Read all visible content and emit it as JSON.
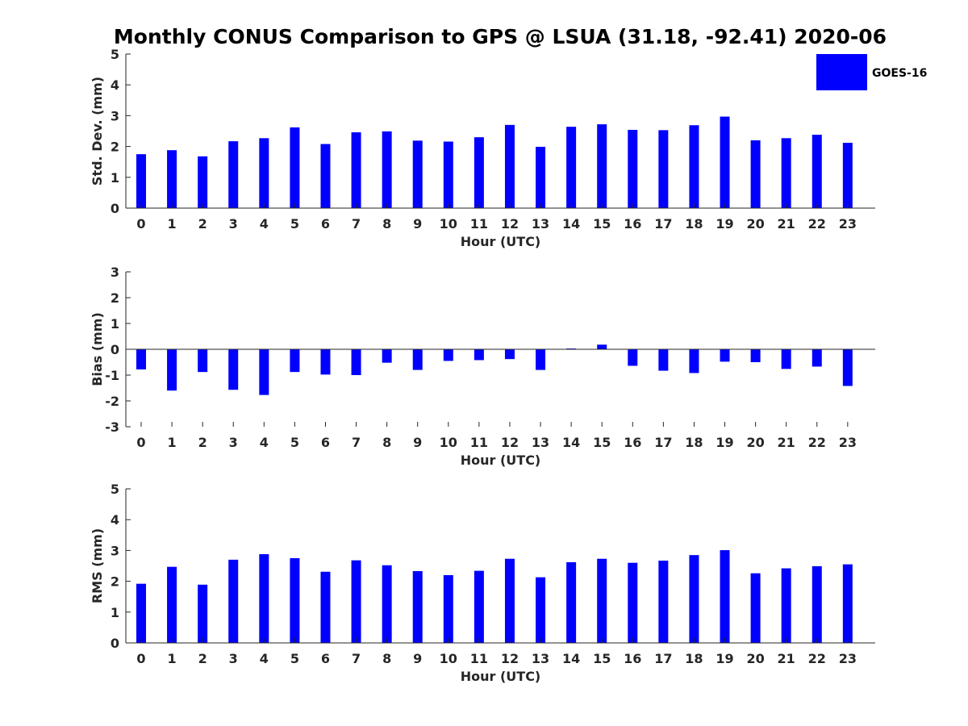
{
  "title": "Monthly CONUS Comparison to GPS @ LSUA (31.18, -92.41) 2020-06",
  "legend": {
    "label": "GOES-16",
    "color": "#0000ff",
    "placement": "top-right"
  },
  "chart_data": [
    {
      "type": "bar",
      "name": "std",
      "ylabel": "Std. Dev. (mm)",
      "xlabel": "Hour (UTC)",
      "ylim": [
        0,
        5
      ],
      "yticks": [
        0,
        1,
        2,
        3,
        4,
        5
      ],
      "categories": [
        0,
        1,
        2,
        3,
        4,
        5,
        6,
        7,
        8,
        9,
        10,
        11,
        12,
        13,
        14,
        15,
        16,
        17,
        18,
        19,
        20,
        21,
        22,
        23
      ],
      "series": [
        {
          "name": "GOES-16",
          "values": [
            1.75,
            1.88,
            1.68,
            2.17,
            2.27,
            2.62,
            2.08,
            2.46,
            2.49,
            2.19,
            2.16,
            2.3,
            2.7,
            1.99,
            2.64,
            2.72,
            2.54,
            2.53,
            2.69,
            2.97,
            2.2,
            2.27,
            2.38,
            2.12
          ]
        }
      ],
      "grid": false
    },
    {
      "type": "bar",
      "name": "bias",
      "ylabel": "Bias (mm)",
      "xlabel": "Hour (UTC)",
      "ylim": [
        -3,
        3
      ],
      "yticks": [
        -3,
        -2,
        -1,
        0,
        1,
        2,
        3
      ],
      "categories": [
        0,
        1,
        2,
        3,
        4,
        5,
        6,
        7,
        8,
        9,
        10,
        11,
        12,
        13,
        14,
        15,
        16,
        17,
        18,
        19,
        20,
        21,
        22,
        23
      ],
      "series": [
        {
          "name": "GOES-16",
          "values": [
            -0.78,
            -1.6,
            -0.88,
            -1.57,
            -1.77,
            -0.88,
            -0.98,
            -1.0,
            -0.52,
            -0.8,
            -0.45,
            -0.42,
            -0.38,
            -0.8,
            0.03,
            0.18,
            -0.64,
            -0.83,
            -0.92,
            -0.48,
            -0.5,
            -0.76,
            -0.67,
            -1.42
          ]
        }
      ],
      "grid": false
    },
    {
      "type": "bar",
      "name": "rms",
      "ylabel": "RMS (mm)",
      "xlabel": "Hour (UTC)",
      "ylim": [
        0,
        5
      ],
      "yticks": [
        0,
        1,
        2,
        3,
        4,
        5
      ],
      "categories": [
        0,
        1,
        2,
        3,
        4,
        5,
        6,
        7,
        8,
        9,
        10,
        11,
        12,
        13,
        14,
        15,
        16,
        17,
        18,
        19,
        20,
        21,
        22,
        23
      ],
      "series": [
        {
          "name": "GOES-16",
          "values": [
            1.92,
            2.47,
            1.89,
            2.7,
            2.88,
            2.75,
            2.31,
            2.68,
            2.52,
            2.33,
            2.2,
            2.34,
            2.73,
            2.13,
            2.62,
            2.73,
            2.6,
            2.67,
            2.85,
            3.01,
            2.26,
            2.42,
            2.49,
            2.55
          ]
        }
      ],
      "grid": false
    }
  ]
}
